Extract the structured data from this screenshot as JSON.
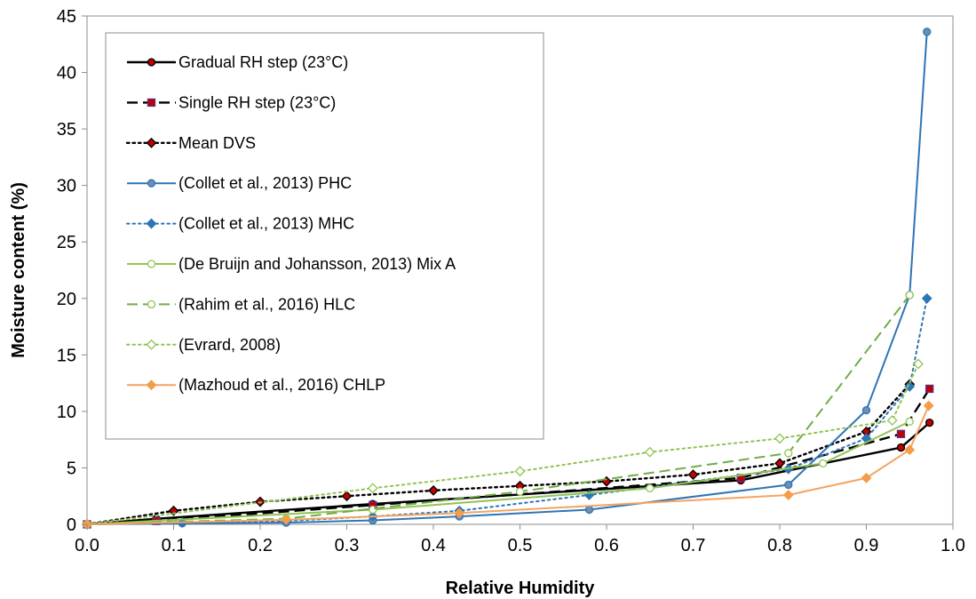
{
  "chart_data": {
    "type": "line",
    "title": "",
    "xlabel": "Relative Humidity",
    "ylabel": "Moisture content (%)",
    "xlim": [
      0,
      1
    ],
    "ylim": [
      0,
      45
    ],
    "x_ticks": [
      "0.0",
      "0.1",
      "0.2",
      "0.3",
      "0.4",
      "0.5",
      "0.6",
      "0.7",
      "0.8",
      "0.9",
      "1.0"
    ],
    "y_ticks": [
      "0",
      "5",
      "10",
      "15",
      "20",
      "25",
      "30",
      "35",
      "40",
      "45"
    ],
    "grid": false,
    "legend_position": "top-left",
    "series": [
      {
        "name": "Gradual RH step (23°C)",
        "color": "#000000",
        "line": "solid",
        "marker": "circle",
        "marker_fill": "#c00000",
        "marker_edge": "#000000",
        "x": [
          0.0,
          0.08,
          0.33,
          0.755,
          0.94,
          0.973
        ],
        "y": [
          0.0,
          0.5,
          1.8,
          3.9,
          6.8,
          9.0
        ]
      },
      {
        "name": "Single RH step (23°C)",
        "color": "#000000",
        "line": "dashed",
        "marker": "square",
        "marker_fill": "#c00000",
        "marker_edge": "#5a2d86",
        "x": [
          0.0,
          0.08,
          0.33,
          0.755,
          0.94,
          0.973
        ],
        "y": [
          0.0,
          0.3,
          1.7,
          4.1,
          8.0,
          12.0
        ]
      },
      {
        "name": "Mean DVS",
        "color": "#000000",
        "line": "dotted",
        "marker": "diamond",
        "marker_fill": "#c00000",
        "marker_edge": "#000000",
        "x": [
          0.0,
          0.1,
          0.2,
          0.3,
          0.4,
          0.5,
          0.6,
          0.7,
          0.8,
          0.9,
          0.95
        ],
        "y": [
          0.0,
          1.2,
          2.0,
          2.5,
          3.0,
          3.4,
          3.8,
          4.4,
          5.4,
          8.2,
          12.4
        ]
      },
      {
        "name": "(Collet et al., 2013) PHC",
        "color": "#2e75b6",
        "line": "solid",
        "marker": "circle",
        "marker_fill": "#6d8fb3",
        "marker_edge": "#2e75b6",
        "x": [
          0.0,
          0.11,
          0.23,
          0.33,
          0.43,
          0.58,
          0.81,
          0.9,
          0.95,
          0.97
        ],
        "y": [
          0.0,
          0.1,
          0.15,
          0.35,
          0.7,
          1.3,
          3.5,
          10.1,
          20.3,
          43.6
        ]
      },
      {
        "name": "(Collet et al., 2013) MHC",
        "color": "#2e75b6",
        "line": "dotted",
        "marker": "diamond",
        "marker_fill": "#2e75b6",
        "marker_edge": "#2e75b6",
        "x": [
          0.0,
          0.11,
          0.23,
          0.33,
          0.43,
          0.58,
          0.81,
          0.9,
          0.95,
          0.97
        ],
        "y": [
          0.0,
          0.15,
          0.3,
          0.7,
          1.2,
          2.6,
          4.9,
          7.6,
          12.2,
          20.0
        ]
      },
      {
        "name": "(De Bruijn and Johansson, 2013) Mix A",
        "color": "#92c353",
        "line": "solid",
        "marker": "circle-open",
        "marker_fill": "#ffffff",
        "marker_edge": "#92c353",
        "x": [
          0.0,
          0.33,
          0.65,
          0.85,
          0.95
        ],
        "y": [
          0.0,
          1.3,
          3.2,
          5.4,
          9.1
        ]
      },
      {
        "name": "(Rahim et al., 2016) HLC",
        "color": "#70ad47",
        "line": "dashed",
        "marker": "circle-open",
        "marker_fill": "#ffffff",
        "marker_edge": "#92c353",
        "x": [
          0.0,
          0.23,
          0.5,
          0.81,
          0.95
        ],
        "y": [
          0.0,
          0.5,
          2.9,
          6.3,
          20.3
        ]
      },
      {
        "name": "(Evrard, 2008)",
        "color": "#92c353",
        "line": "dotted",
        "marker": "diamond-open",
        "marker_fill": "#ffffff",
        "marker_edge": "#92c353",
        "x": [
          0.0,
          0.33,
          0.5,
          0.65,
          0.8,
          0.93,
          0.96
        ],
        "y": [
          0.0,
          3.2,
          4.7,
          6.4,
          7.6,
          9.2,
          14.2
        ]
      },
      {
        "name": "(Mazhoud et al., 2016) CHLP",
        "color": "#f4a460",
        "line": "solid",
        "marker": "diamond",
        "marker_fill": "#f39c4a",
        "marker_edge": "#f39c4a",
        "x": [
          0.0,
          0.23,
          0.43,
          0.81,
          0.9,
          0.95,
          0.972
        ],
        "y": [
          0.0,
          0.4,
          1.0,
          2.6,
          4.1,
          6.6,
          10.5
        ]
      }
    ]
  }
}
